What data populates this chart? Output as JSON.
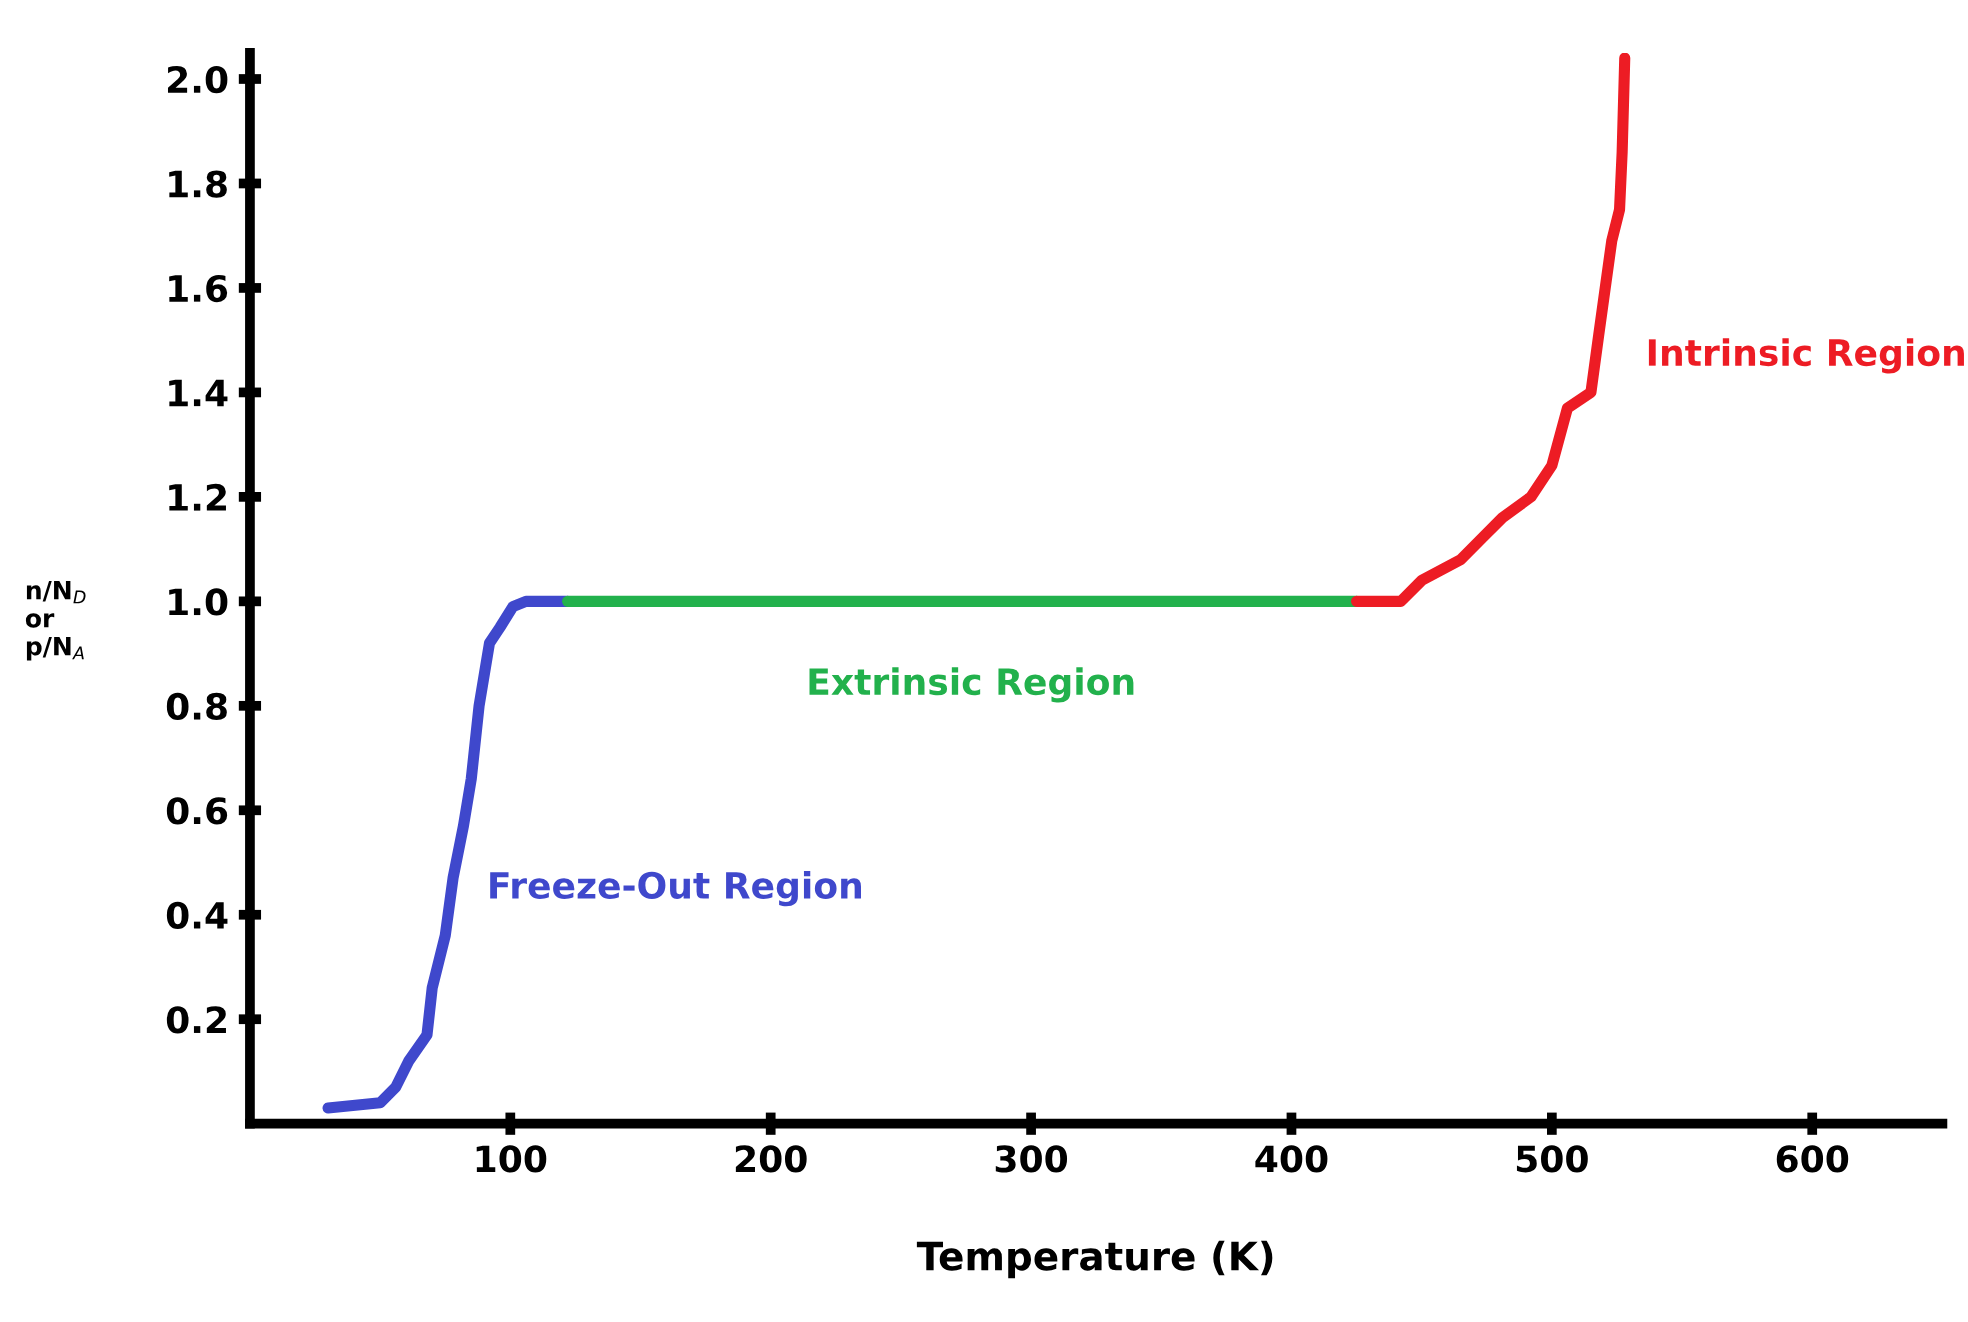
{
  "chart_data": {
    "type": "line",
    "xlabel": "Temperature (K)",
    "ylabel": "n/N$_{D}$\nor\np/N$_{A}$",
    "xlim": [
      0,
      650
    ],
    "ylim": [
      0,
      2.05
    ],
    "xticks": [
      100,
      200,
      300,
      400,
      500,
      600
    ],
    "yticks": [
      0.2,
      0.4,
      0.6,
      0.8,
      {
        "value": 1,
        "label": "1.0"
      },
      1.2,
      1.4,
      1.6,
      1.8,
      {
        "value": 2,
        "label": "2.0"
      }
    ],
    "grid": false,
    "legend": false,
    "series": [
      {
        "name": "Freeze-Out Region",
        "color": "#3f48cc",
        "x": [
          30,
          50,
          56,
          61,
          68,
          70,
          75,
          78,
          82,
          85,
          88,
          92,
          96,
          101,
          106,
          122
        ],
        "values": [
          0.03,
          0.04,
          0.07,
          0.12,
          0.17,
          0.26,
          0.36,
          0.47,
          0.57,
          0.66,
          0.8,
          0.92,
          0.95,
          0.99,
          1.0,
          1.0
        ]
      },
      {
        "name": "Extrinsic Region",
        "color": "#22b14c",
        "x": [
          122,
          425
        ],
        "values": [
          1.0,
          1.0
        ]
      },
      {
        "name": "Intrinsic Region",
        "color": "#ed1c24",
        "x": [
          425,
          442,
          450,
          465,
          473,
          481,
          492,
          500,
          506,
          515,
          518,
          523,
          526,
          527,
          528
        ],
        "values": [
          1.0,
          1.0,
          1.04,
          1.08,
          1.12,
          1.16,
          1.2,
          1.26,
          1.37,
          1.4,
          1.51,
          1.69,
          1.75,
          1.86,
          2.04
        ]
      }
    ]
  }
}
